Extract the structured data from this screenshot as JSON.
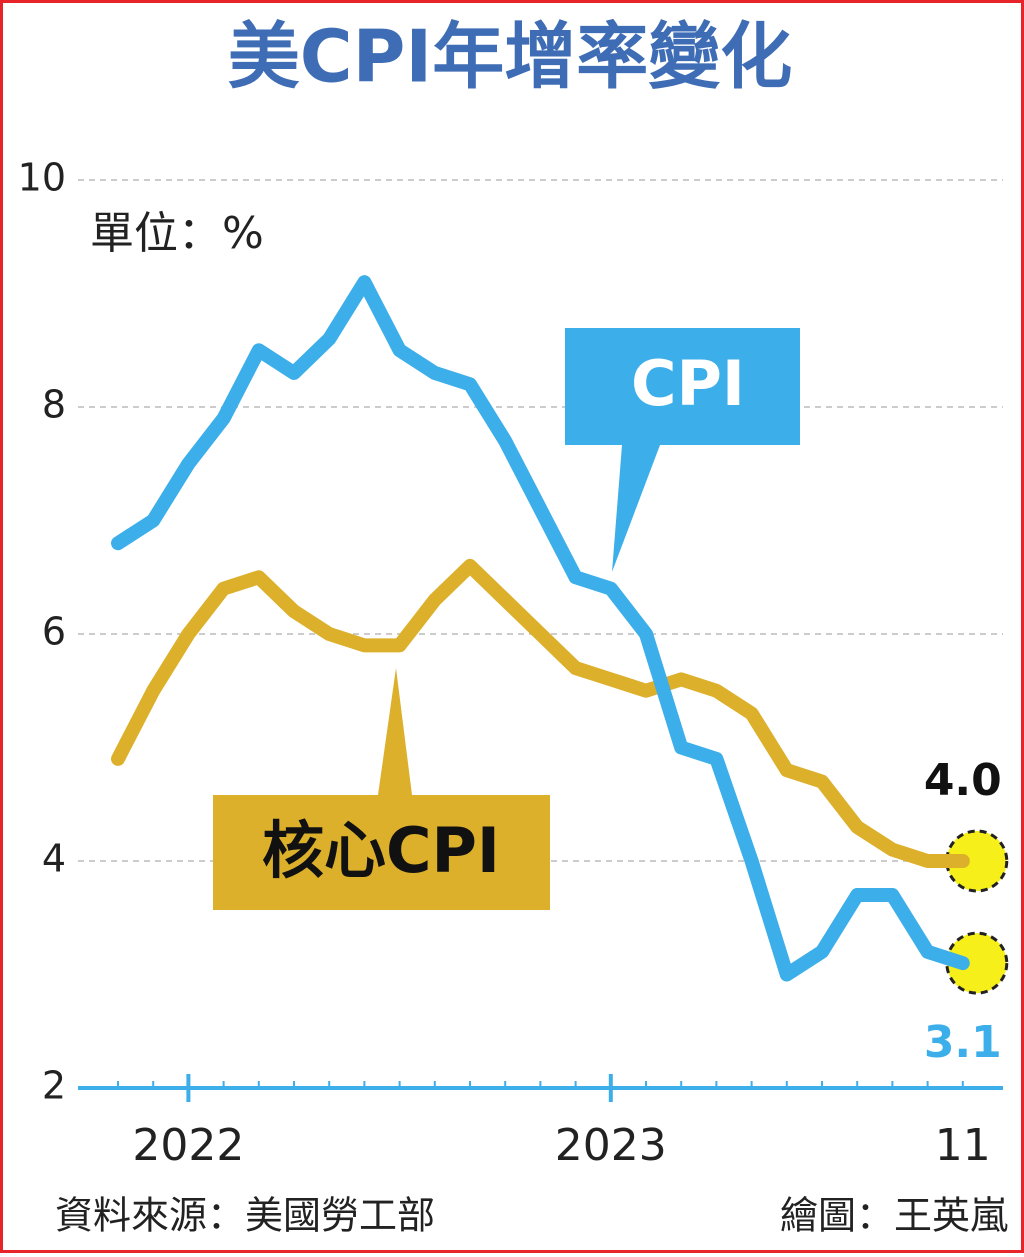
{
  "chart_data": {
    "type": "line",
    "title": "美CPI年增率變化",
    "unit_label": "單位：%",
    "categories": [
      null,
      null,
      "2022",
      null,
      null,
      null,
      null,
      null,
      null,
      null,
      null,
      null,
      null,
      null,
      "2023",
      null,
      null,
      null,
      null,
      null,
      null,
      null,
      null,
      null,
      "11"
    ],
    "series": [
      {
        "name": "CPI",
        "color": "#3caeea",
        "values": [
          6.8,
          7.0,
          7.5,
          7.9,
          8.5,
          8.3,
          8.6,
          9.1,
          8.5,
          8.3,
          8.2,
          7.7,
          7.1,
          6.5,
          6.4,
          6.0,
          5.0,
          4.9,
          4.0,
          3.0,
          3.2,
          3.7,
          3.7,
          3.2,
          3.1
        ]
      },
      {
        "name": "核心CPI",
        "color": "#dcb02a",
        "values": [
          4.9,
          5.5,
          6.0,
          6.4,
          6.5,
          6.2,
          6.0,
          5.9,
          5.9,
          6.3,
          6.6,
          6.3,
          6.0,
          5.7,
          5.6,
          5.5,
          5.6,
          5.5,
          5.3,
          4.8,
          4.7,
          4.3,
          4.1,
          4.0,
          4.0
        ],
        "value_labels": [
          null,
          null,
          null,
          null,
          null,
          null,
          null,
          null,
          null,
          null,
          null,
          null,
          null,
          null,
          null,
          null,
          null,
          null,
          null,
          null,
          null,
          null,
          null,
          null,
          "4.0"
        ]
      }
    ],
    "ylim": [
      2,
      10
    ],
    "yticks": [
      2,
      4,
      6,
      8,
      10
    ],
    "grid": true,
    "source": "資料來源：美國勞工部",
    "credit": "繪圖：王英嵐"
  }
}
